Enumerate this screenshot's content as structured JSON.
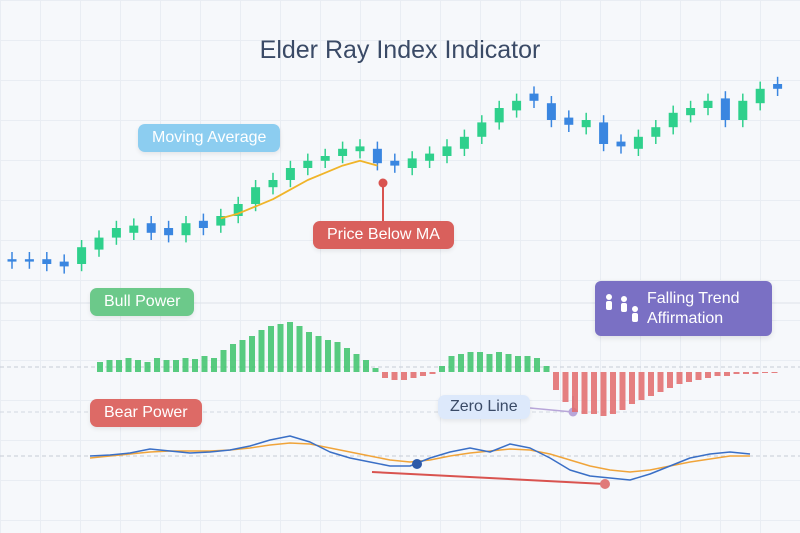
{
  "chart_data": [
    {
      "type": "candlestick",
      "title": "Elder Ray Index Indicator",
      "open": [
        17,
        17,
        17,
        16,
        15,
        21,
        26,
        28,
        32,
        30,
        27,
        33,
        31,
        35,
        40,
        47,
        50,
        55,
        58,
        60,
        62,
        63,
        58,
        55,
        58,
        60,
        63,
        68,
        74,
        79,
        86,
        82,
        76,
        72,
        74,
        66,
        63,
        68,
        72,
        77,
        80,
        84,
        75,
        82,
        90
      ],
      "high": [
        20,
        20,
        20,
        19,
        25,
        29,
        33,
        34,
        35,
        33,
        35,
        36,
        38,
        43,
        50,
        53,
        58,
        61,
        63,
        66,
        67,
        66,
        61,
        62,
        64,
        67,
        71,
        77,
        83,
        86,
        89,
        85,
        79,
        78,
        77,
        69,
        71,
        75,
        81,
        83,
        86,
        87,
        86,
        91,
        93
      ],
      "low": [
        13,
        13,
        12,
        11,
        12,
        18,
        23,
        25,
        25,
        24,
        24,
        27,
        28,
        32,
        37,
        44,
        47,
        52,
        55,
        57,
        59,
        54,
        53,
        52,
        55,
        57,
        60,
        65,
        71,
        76,
        80,
        72,
        70,
        69,
        62,
        61,
        60,
        65,
        69,
        74,
        77,
        72,
        72,
        79,
        85
      ],
      "close": [
        16,
        16,
        15,
        14,
        22,
        26,
        30,
        31,
        28,
        27,
        32,
        30,
        35,
        40,
        47,
        50,
        55,
        58,
        60,
        63,
        64,
        57,
        56,
        59,
        61,
        64,
        68,
        74,
        80,
        83,
        83,
        75,
        73,
        75,
        65,
        64,
        68,
        72,
        78,
        80,
        83,
        75,
        83,
        88,
        88
      ],
      "up_color": "#2fd08c",
      "down_color": "#3a86e0",
      "moving_average": {
        "name": "Moving Average",
        "color": "#f0b429",
        "values": [
          null,
          null,
          null,
          null,
          null,
          null,
          null,
          null,
          null,
          null,
          null,
          null,
          34,
          36,
          39,
          42,
          46,
          50,
          53,
          56,
          58,
          56,
          null,
          null,
          null,
          null,
          null,
          null,
          null,
          null,
          null,
          null,
          null,
          null,
          null,
          null,
          null,
          null,
          null,
          null,
          null,
          null,
          null,
          null,
          null
        ]
      },
      "annotation": "Price Below MA",
      "ylim": [
        0,
        100
      ]
    },
    {
      "type": "bar",
      "title": "Bull Power",
      "values": [
        10,
        12,
        12,
        14,
        12,
        10,
        14,
        12,
        12,
        14,
        13,
        16,
        14,
        22,
        28,
        32,
        36,
        42,
        46,
        48,
        50,
        46,
        40,
        36,
        32,
        30,
        24,
        18,
        12,
        4,
        -6,
        -8,
        -8,
        -6,
        -4,
        -2,
        6,
        16,
        18,
        20,
        20,
        18,
        20,
        18,
        16,
        16,
        14,
        6,
        -18,
        -30,
        -40,
        -42,
        -42,
        -44,
        -42,
        -38,
        -32,
        -28,
        -24,
        -20,
        -16,
        -12,
        -10,
        -8,
        -6,
        -4,
        -4,
        -2,
        -2,
        -2,
        -1,
        -1
      ],
      "positive_color": "#3cc36a",
      "negative_color": "#e26a6a",
      "annotation": "Falling Trend Affirmation",
      "ylim": [
        -45,
        55
      ]
    },
    {
      "type": "line",
      "title": "Bear Power",
      "series": [
        {
          "color": "#3a6fc6",
          "values": [
            0,
            1,
            3,
            7,
            5,
            3,
            4,
            6,
            10,
            16,
            20,
            14,
            4,
            -2,
            -6,
            -10,
            -10,
            -2,
            4,
            8,
            4,
            12,
            8,
            -2,
            -14,
            -20,
            -22,
            -24,
            -18,
            -10,
            -2,
            2,
            4,
            2
          ]
        },
        {
          "color": "#f0a43a",
          "values": [
            -2,
            0,
            2,
            4,
            5,
            5,
            5,
            6,
            8,
            11,
            13,
            12,
            8,
            4,
            0,
            -4,
            -6,
            -4,
            0,
            3,
            5,
            7,
            6,
            2,
            -4,
            -10,
            -14,
            -16,
            -14,
            -10,
            -6,
            -3,
            0,
            0
          ]
        }
      ],
      "annotation": "Zero Line",
      "ylim": [
        -30,
        30
      ]
    }
  ]
}
